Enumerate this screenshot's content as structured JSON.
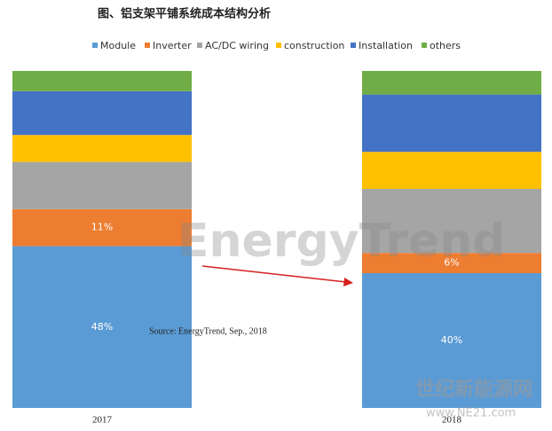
{
  "chart_data": {
    "type": "stacked-bar",
    "title": "图、铝支架平铺系统成本结构分析",
    "categories": [
      "2017",
      "2018"
    ],
    "ylim": [
      0,
      100
    ],
    "series": [
      {
        "name": "Module",
        "color": "#5b9bd5",
        "values": [
          48,
          40
        ],
        "value_labels": [
          "48%",
          "40%"
        ]
      },
      {
        "name": "Inverter",
        "color": "#ed7d31",
        "values": [
          11,
          6
        ],
        "value_labels": [
          "11%",
          "6%"
        ]
      },
      {
        "name": "AC/DC wiring",
        "color": "#a5a5a5",
        "values": [
          14,
          19
        ]
      },
      {
        "name": "construction",
        "color": "#ffc000",
        "values": [
          8,
          11
        ]
      },
      {
        "name": "Installation",
        "color": "#4472c4",
        "values": [
          13,
          17
        ]
      },
      {
        "name": "others",
        "color": "#70ad47",
        "values": [
          6,
          7
        ]
      }
    ],
    "source": "Source: EnergyTrend, Sep., 2018",
    "watermarks": [
      "EnergyTrend",
      "世纪新能源网",
      "www.NE21.com"
    ]
  }
}
